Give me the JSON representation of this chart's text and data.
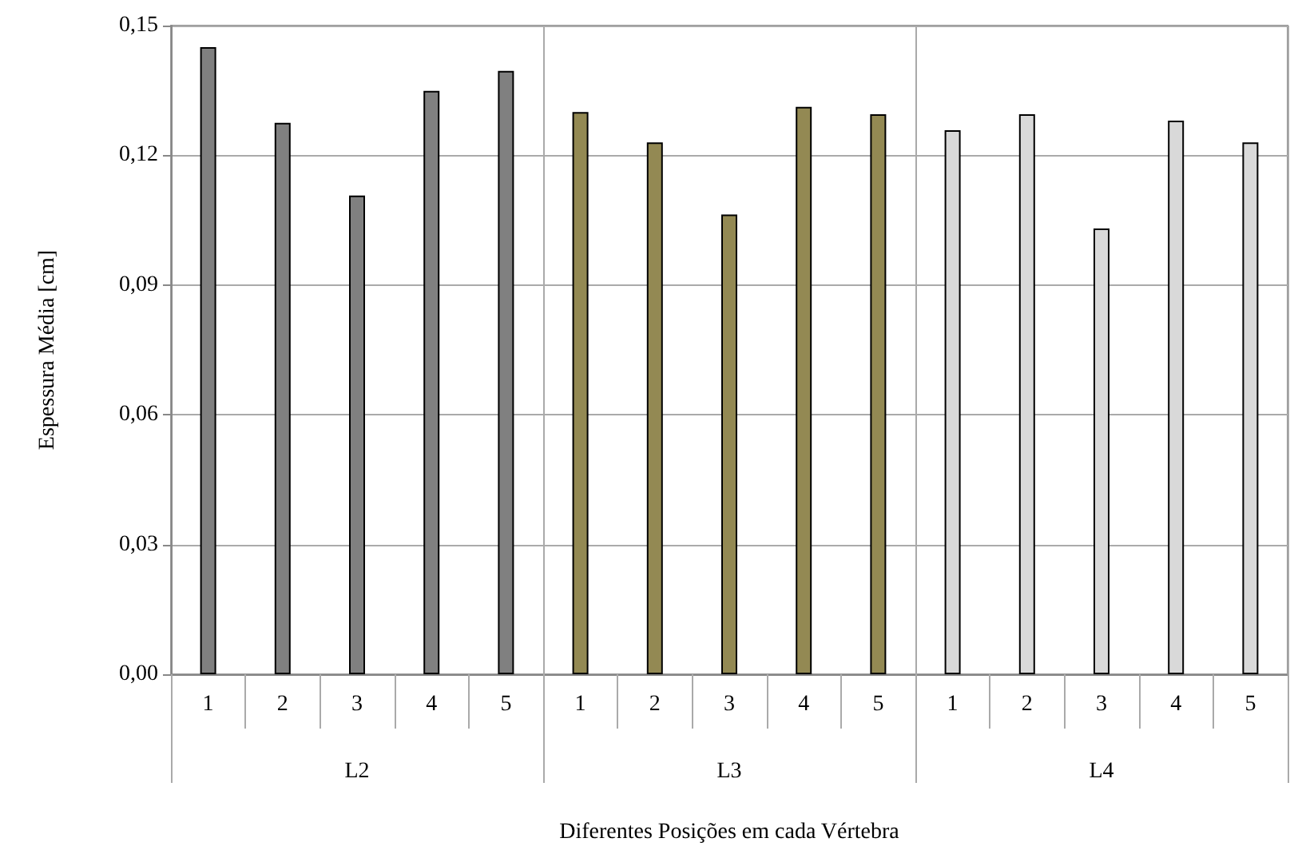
{
  "chart_data": {
    "type": "bar",
    "xlabel": "Diferentes Posições em cada Vértebra",
    "ylabel": "Espessura Média [cm]",
    "categories": [
      "1",
      "2",
      "3",
      "4",
      "5",
      "1",
      "2",
      "3",
      "4",
      "5",
      "1",
      "2",
      "3",
      "4",
      "5"
    ],
    "series": [
      {
        "color": "#808080",
        "values": [
          0.145,
          0.1275,
          0.1107,
          0.1349,
          0.1395,
          null,
          null,
          null,
          null,
          null,
          null,
          null,
          null,
          null,
          null
        ]
      },
      {
        "color": "#938953",
        "values": [
          null,
          null,
          null,
          null,
          null,
          0.13,
          0.123,
          0.1063,
          0.1312,
          0.1295,
          null,
          null,
          null,
          null,
          null
        ]
      },
      {
        "color": "#d9d9d9",
        "values": [
          null,
          null,
          null,
          null,
          null,
          null,
          null,
          null,
          null,
          null,
          0.1258,
          0.1295,
          0.1031,
          0.128,
          0.123
        ]
      }
    ],
    "ylim": [
      0,
      0.15
    ],
    "yticks": [
      {
        "value": 0,
        "label": "0,00"
      },
      {
        "value": 0.03,
        "label": "0,03"
      },
      {
        "value": 0.06,
        "label": "0,06"
      },
      {
        "value": 0.09,
        "label": "0,09"
      },
      {
        "value": 0.12,
        "label": "0,12"
      },
      {
        "value": 0.15,
        "label": "0,15"
      }
    ],
    "annotations": [
      "L2",
      "L3",
      "L4"
    ],
    "grid": "y"
  }
}
